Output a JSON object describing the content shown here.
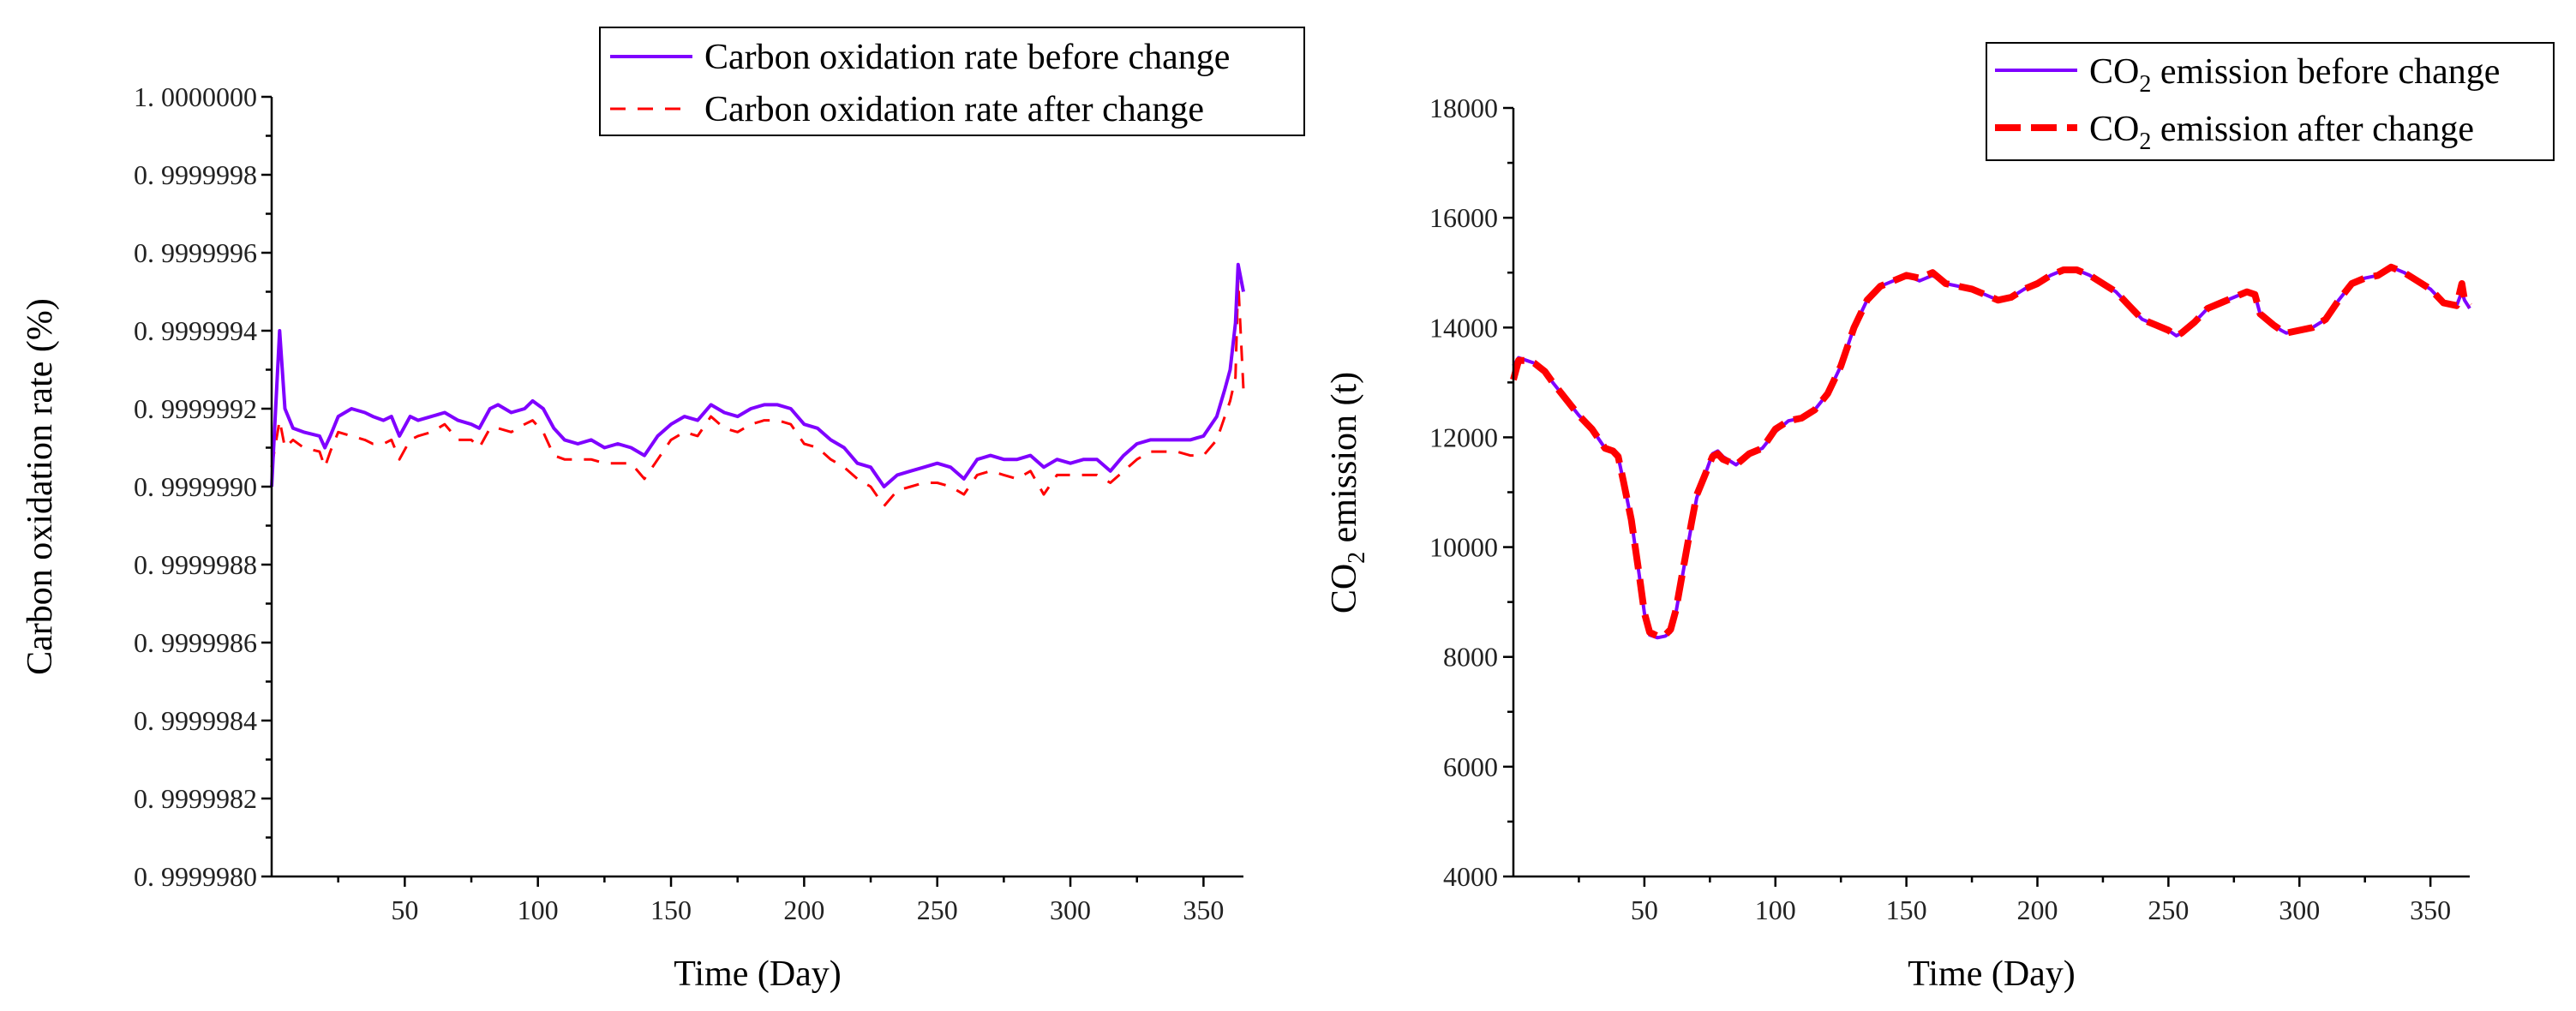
{
  "chart_data": [
    {
      "type": "line",
      "xlabel": "Time (Day)",
      "ylabel": "Carbon oxidation rate (%)",
      "xlim": [
        0,
        365
      ],
      "ylim": [
        0.999998,
        1.0
      ],
      "xticks": [
        50,
        100,
        150,
        200,
        250,
        300,
        350
      ],
      "yticks": [
        0.999998,
        0.9999982,
        0.9999984,
        0.9999986,
        0.9999988,
        0.999999,
        0.9999992,
        0.9999994,
        0.9999996,
        0.9999998,
        1.0
      ],
      "ytick_labels": [
        "0. 9999980",
        "0. 9999982",
        "0. 9999984",
        "0. 9999986",
        "0. 9999988",
        "0. 9999990",
        "0. 9999992",
        "0. 9999994",
        "0. 9999996",
        "0. 9999998",
        "1. 0000000"
      ],
      "legend_position": "top-right",
      "series": [
        {
          "name": "Carbon oxidation rate before change",
          "color": "#7f00ff",
          "style": "solid",
          "x": [
            0,
            3,
            5,
            8,
            12,
            18,
            20,
            22,
            25,
            30,
            35,
            38,
            42,
            45,
            48,
            52,
            55,
            60,
            65,
            70,
            75,
            78,
            82,
            85,
            90,
            95,
            98,
            102,
            106,
            110,
            115,
            120,
            125,
            130,
            135,
            140,
            145,
            150,
            155,
            160,
            165,
            170,
            175,
            180,
            185,
            190,
            195,
            200,
            205,
            210,
            215,
            220,
            225,
            230,
            235,
            240,
            245,
            250,
            255,
            260,
            265,
            270,
            275,
            280,
            285,
            290,
            295,
            300,
            305,
            310,
            315,
            320,
            325,
            330,
            335,
            340,
            345,
            350,
            355,
            358,
            360,
            362,
            363,
            365
          ],
          "values": [
            0.999999,
            0.9999994,
            0.9999992,
            0.99999915,
            0.99999914,
            0.99999913,
            0.9999991,
            0.99999913,
            0.99999918,
            0.9999992,
            0.99999919,
            0.99999918,
            0.99999917,
            0.99999918,
            0.99999913,
            0.99999918,
            0.99999917,
            0.99999918,
            0.99999919,
            0.99999917,
            0.99999916,
            0.99999915,
            0.9999992,
            0.99999921,
            0.99999919,
            0.9999992,
            0.99999922,
            0.9999992,
            0.99999915,
            0.99999912,
            0.99999911,
            0.99999912,
            0.9999991,
            0.99999911,
            0.9999991,
            0.99999908,
            0.99999913,
            0.99999916,
            0.99999918,
            0.99999917,
            0.99999921,
            0.99999919,
            0.99999918,
            0.9999992,
            0.99999921,
            0.99999921,
            0.9999992,
            0.99999916,
            0.99999915,
            0.99999912,
            0.9999991,
            0.99999906,
            0.99999905,
            0.999999,
            0.99999903,
            0.99999904,
            0.99999905,
            0.99999906,
            0.99999905,
            0.99999902,
            0.99999907,
            0.99999908,
            0.99999907,
            0.99999907,
            0.99999908,
            0.99999905,
            0.99999907,
            0.99999906,
            0.99999907,
            0.99999907,
            0.99999904,
            0.99999908,
            0.99999911,
            0.99999912,
            0.99999912,
            0.99999912,
            0.99999912,
            0.99999913,
            0.99999918,
            0.99999925,
            0.9999993,
            0.99999942,
            0.99999957,
            0.9999995
          ]
        },
        {
          "name": "Carbon oxidation rate after change",
          "color": "#ff0000",
          "style": "dashed",
          "x": [
            0,
            3,
            5,
            8,
            12,
            18,
            20,
            22,
            25,
            30,
            35,
            38,
            42,
            45,
            48,
            52,
            55,
            60,
            65,
            70,
            75,
            78,
            82,
            85,
            90,
            95,
            98,
            102,
            106,
            110,
            115,
            120,
            125,
            130,
            135,
            140,
            145,
            150,
            155,
            160,
            165,
            170,
            175,
            180,
            185,
            190,
            195,
            200,
            205,
            210,
            215,
            220,
            225,
            230,
            235,
            240,
            245,
            250,
            255,
            260,
            265,
            270,
            275,
            280,
            285,
            290,
            295,
            300,
            305,
            310,
            315,
            320,
            325,
            330,
            335,
            340,
            345,
            350,
            355,
            358,
            360,
            362,
            363,
            365
          ],
          "values": [
            0.99999905,
            0.99999917,
            0.9999991,
            0.99999912,
            0.9999991,
            0.99999909,
            0.99999905,
            0.99999909,
            0.99999914,
            0.99999913,
            0.99999912,
            0.99999911,
            0.99999911,
            0.99999912,
            0.99999907,
            0.99999912,
            0.99999913,
            0.99999914,
            0.99999916,
            0.99999912,
            0.99999912,
            0.9999991,
            0.99999915,
            0.99999915,
            0.99999914,
            0.99999916,
            0.99999917,
            0.99999914,
            0.99999908,
            0.99999907,
            0.99999907,
            0.99999907,
            0.99999906,
            0.99999906,
            0.99999906,
            0.99999902,
            0.99999907,
            0.99999912,
            0.99999914,
            0.99999913,
            0.99999918,
            0.99999915,
            0.99999914,
            0.99999916,
            0.99999917,
            0.99999917,
            0.99999916,
            0.99999911,
            0.9999991,
            0.99999907,
            0.99999905,
            0.99999902,
            0.999999,
            0.99999895,
            0.99999899,
            0.999999,
            0.99999901,
            0.99999901,
            0.999999,
            0.99999898,
            0.99999903,
            0.99999904,
            0.99999903,
            0.99999902,
            0.99999904,
            0.99999898,
            0.99999903,
            0.99999903,
            0.99999903,
            0.99999903,
            0.99999901,
            0.99999904,
            0.99999907,
            0.99999909,
            0.99999909,
            0.99999909,
            0.99999908,
            0.99999908,
            0.99999912,
            0.99999918,
            0.99999922,
            0.99999928,
            0.99999953,
            0.99999925
          ]
        }
      ]
    },
    {
      "type": "line",
      "xlabel": "Time (Day)",
      "ylabel_main": "CO",
      "ylabel_sub": "2",
      "ylabel_rest": " emission (t)",
      "xlim": [
        0,
        365
      ],
      "ylim": [
        4000,
        18000
      ],
      "xticks": [
        50,
        100,
        150,
        200,
        250,
        300,
        350
      ],
      "yticks": [
        4000,
        6000,
        8000,
        10000,
        12000,
        14000,
        16000,
        18000
      ],
      "legend_position": "top-right",
      "series": [
        {
          "name_main": "CO",
          "name_sub": "2",
          "name_rest": " emission before change",
          "color": "#7f00ff",
          "style": "solid",
          "x": [
            0,
            2,
            5,
            8,
            12,
            15,
            20,
            25,
            30,
            35,
            38,
            40,
            42,
            45,
            48,
            50,
            52,
            55,
            58,
            60,
            62,
            65,
            68,
            70,
            73,
            76,
            78,
            80,
            85,
            90,
            95,
            100,
            105,
            110,
            115,
            120,
            125,
            130,
            135,
            140,
            145,
            150,
            155,
            160,
            165,
            170,
            175,
            180,
            185,
            190,
            195,
            200,
            205,
            210,
            215,
            220,
            225,
            230,
            235,
            240,
            245,
            250,
            253,
            255,
            260,
            265,
            270,
            275,
            280,
            283,
            285,
            290,
            293,
            295,
            300,
            305,
            310,
            315,
            320,
            325,
            330,
            335,
            340,
            345,
            350,
            355,
            360,
            362,
            363,
            365
          ],
          "values": [
            13300,
            13450,
            13400,
            13350,
            13200,
            13000,
            12700,
            12400,
            12150,
            11800,
            11750,
            11650,
            11200,
            10500,
            9500,
            8800,
            8400,
            8350,
            8380,
            8450,
            8800,
            9600,
            10400,
            10900,
            11300,
            11700,
            11750,
            11650,
            11500,
            11700,
            11800,
            12100,
            12300,
            12350,
            12500,
            12800,
            13300,
            14000,
            14500,
            14750,
            14850,
            14950,
            14850,
            14950,
            14800,
            14750,
            14700,
            14600,
            14500,
            14550,
            14700,
            14800,
            14950,
            15050,
            15050,
            14950,
            14800,
            14650,
            14400,
            14150,
            14050,
            13950,
            13850,
            13900,
            14100,
            14350,
            14450,
            14550,
            14650,
            14600,
            14250,
            14050,
            13950,
            13900,
            13950,
            14000,
            14150,
            14500,
            14800,
            14900,
            14950,
            15100,
            15000,
            14850,
            14700,
            14450,
            14400,
            14650,
            14500,
            14350
          ]
        },
        {
          "name_main": "CO",
          "name_sub": "2",
          "name_rest": " emission after change",
          "color": "#ff0000",
          "style": "dashed",
          "x": [
            0,
            2,
            5,
            8,
            12,
            15,
            20,
            25,
            30,
            35,
            38,
            40,
            42,
            45,
            48,
            50,
            52,
            55,
            58,
            60,
            62,
            65,
            68,
            70,
            73,
            76,
            78,
            80,
            85,
            90,
            95,
            100,
            105,
            110,
            115,
            120,
            125,
            130,
            135,
            140,
            145,
            150,
            155,
            160,
            165,
            170,
            175,
            180,
            185,
            190,
            195,
            200,
            205,
            210,
            215,
            220,
            225,
            230,
            235,
            240,
            245,
            250,
            253,
            255,
            260,
            265,
            270,
            275,
            280,
            283,
            285,
            290,
            293,
            295,
            300,
            305,
            310,
            315,
            320,
            325,
            330,
            335,
            340,
            345,
            350,
            355,
            360,
            362,
            363,
            365
          ],
          "values": [
            13050,
            13400,
            13400,
            13350,
            13200,
            13000,
            12700,
            12400,
            12150,
            11800,
            11750,
            11650,
            11200,
            10500,
            9500,
            8800,
            8450,
            8380,
            8400,
            8500,
            8850,
            9650,
            10450,
            10950,
            11300,
            11650,
            11700,
            11600,
            11500,
            11700,
            11800,
            12150,
            12300,
            12350,
            12500,
            12800,
            13300,
            14000,
            14500,
            14750,
            14850,
            14950,
            14900,
            15000,
            14800,
            14750,
            14700,
            14600,
            14500,
            14550,
            14700,
            14800,
            14950,
            15050,
            15050,
            14950,
            14800,
            14650,
            14400,
            14150,
            14050,
            13950,
            13850,
            13900,
            14100,
            14350,
            14450,
            14550,
            14650,
            14600,
            14250,
            14050,
            13950,
            13900,
            13950,
            14000,
            14150,
            14500,
            14800,
            14900,
            14950,
            15100,
            15000,
            14850,
            14700,
            14450,
            14400,
            14800,
            14500,
            14400
          ]
        }
      ]
    }
  ]
}
